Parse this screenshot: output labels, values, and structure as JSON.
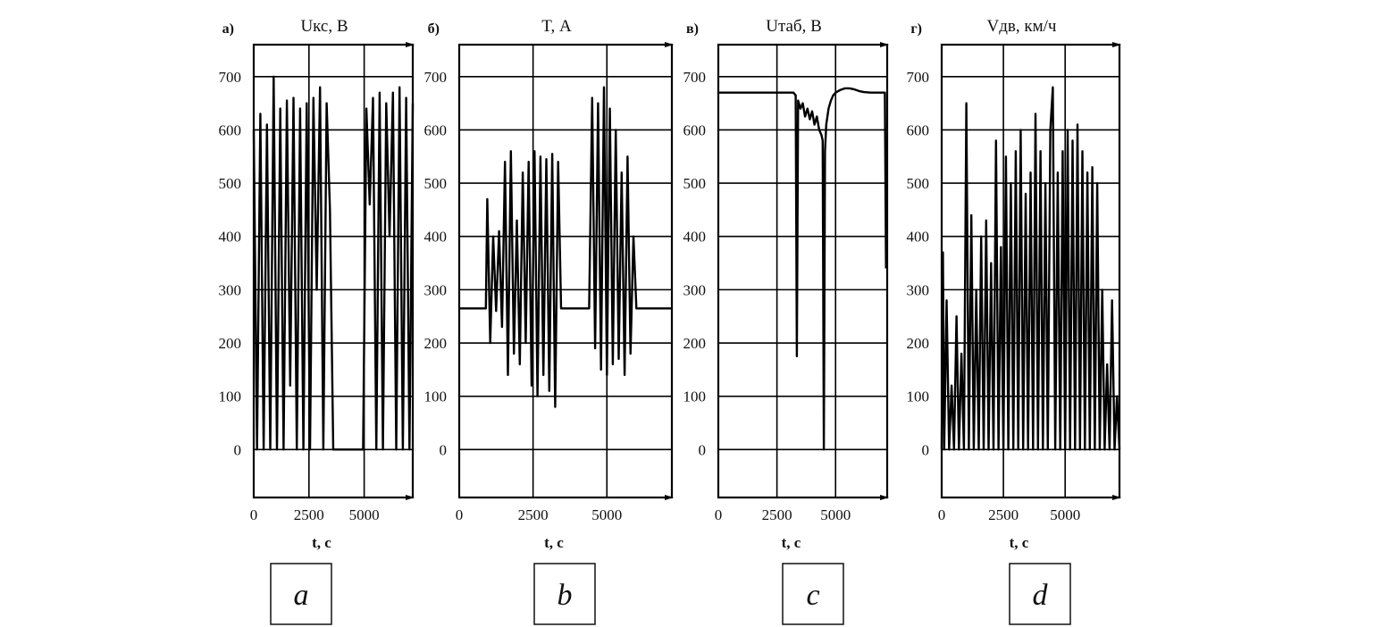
{
  "chart_data": [
    {
      "type": "line",
      "panel_label": "а)",
      "title": "Uкс, В",
      "xlabel": "t, с",
      "ylabel": "",
      "caption": "a",
      "xlim": [
        0,
        7200
      ],
      "ylim": [
        -90,
        760
      ],
      "xticks": [
        0,
        2500,
        5000
      ],
      "yticks": [
        0,
        100,
        200,
        300,
        400,
        500,
        600,
        700
      ],
      "grid": true,
      "series": [
        {
          "x": [
            0,
            150,
            300,
            450,
            600,
            750,
            900,
            1050,
            1200,
            1350,
            1500,
            1650,
            1800,
            1950,
            2100,
            2250,
            2400,
            2550,
            2700,
            2850,
            3000,
            3150,
            3300,
            3450,
            3600,
            3750,
            3900,
            4050,
            4200,
            4350,
            4500,
            4650,
            4800,
            4950,
            5100,
            5250,
            5400,
            5550,
            5700,
            5850,
            6000,
            6150,
            6300,
            6450,
            6600,
            6750,
            6900,
            7050,
            7200
          ],
          "y": [
            600,
            0,
            630,
            0,
            610,
            0,
            700,
            0,
            640,
            0,
            655,
            120,
            660,
            0,
            640,
            0,
            650,
            0,
            660,
            300,
            680,
            0,
            650,
            450,
            0,
            0,
            0,
            0,
            0,
            0,
            0,
            0,
            0,
            0,
            640,
            460,
            660,
            0,
            670,
            0,
            650,
            400,
            670,
            0,
            680,
            0,
            660,
            0,
            650
          ]
        }
      ]
    },
    {
      "type": "line",
      "panel_label": "б)",
      "title": "T, А",
      "xlabel": "t, с",
      "ylabel": "",
      "caption": "b",
      "xlim": [
        0,
        7200
      ],
      "ylim": [
        -90,
        760
      ],
      "xticks": [
        0,
        2500,
        5000
      ],
      "yticks": [
        0,
        100,
        200,
        300,
        400,
        500,
        600,
        700
      ],
      "grid": true,
      "series": [
        {
          "x": [
            0,
            900,
            950,
            1050,
            1150,
            1250,
            1350,
            1450,
            1550,
            1650,
            1750,
            1850,
            1950,
            2050,
            2150,
            2250,
            2350,
            2450,
            2550,
            2650,
            2750,
            2850,
            2950,
            3050,
            3150,
            3250,
            3350,
            3450,
            3600,
            3900,
            4200,
            4400,
            4500,
            4600,
            4700,
            4800,
            4900,
            5000,
            5100,
            5200,
            5300,
            5400,
            5500,
            5600,
            5700,
            5800,
            5900,
            6000,
            6300,
            7200
          ],
          "y": [
            265,
            265,
            470,
            200,
            400,
            260,
            410,
            230,
            540,
            140,
            560,
            180,
            430,
            160,
            520,
            200,
            540,
            120,
            560,
            100,
            550,
            140,
            545,
            110,
            555,
            80,
            540,
            265,
            265,
            265,
            265,
            265,
            660,
            190,
            650,
            150,
            680,
            140,
            640,
            160,
            600,
            170,
            520,
            140,
            550,
            180,
            400,
            265,
            265,
            265
          ]
        }
      ]
    },
    {
      "type": "line",
      "panel_label": "в)",
      "title": "Uтаб, В",
      "xlabel": "t, с",
      "ylabel": "",
      "caption": "c",
      "xlim": [
        0,
        7200
      ],
      "ylim": [
        -90,
        760
      ],
      "xticks": [
        0,
        2500,
        5000
      ],
      "yticks": [
        0,
        100,
        200,
        300,
        400,
        500,
        600,
        700
      ],
      "grid": true,
      "series": [
        {
          "x": [
            0,
            500,
            1000,
            1500,
            2000,
            2500,
            3000,
            3200,
            3300,
            3350,
            3400,
            3500,
            3600,
            3700,
            3800,
            3900,
            4000,
            4100,
            4200,
            4300,
            4400,
            4450,
            4500,
            4550,
            4600,
            4700,
            4800,
            4900,
            5000,
            5200,
            5400,
            5600,
            5800,
            6000,
            6200,
            6500,
            6800,
            7000,
            7100,
            7150
          ],
          "y": [
            670,
            670,
            670,
            670,
            670,
            670,
            670,
            670,
            665,
            175,
            655,
            640,
            650,
            625,
            640,
            620,
            635,
            610,
            625,
            600,
            590,
            580,
            0,
            560,
            610,
            640,
            655,
            665,
            670,
            675,
            678,
            678,
            676,
            673,
            671,
            670,
            670,
            670,
            670,
            340
          ]
        }
      ]
    },
    {
      "type": "line",
      "panel_label": "г)",
      "title": "Vдв, км/ч",
      "xlabel": "t, с",
      "ylabel": "",
      "caption": "d",
      "xlim": [
        0,
        7200
      ],
      "ylim": [
        -90,
        760
      ],
      "xticks": [
        0,
        2500,
        5000
      ],
      "yticks": [
        0,
        100,
        200,
        300,
        400,
        500,
        600,
        700
      ],
      "grid": true,
      "series": [
        {
          "x": [
            0,
            50,
            100,
            200,
            300,
            400,
            500,
            600,
            700,
            800,
            900,
            1000,
            1100,
            1200,
            1300,
            1400,
            1500,
            1600,
            1700,
            1800,
            1900,
            2000,
            2100,
            2200,
            2300,
            2400,
            2500,
            2600,
            2700,
            2800,
            2900,
            3000,
            3100,
            3200,
            3300,
            3400,
            3500,
            3600,
            3700,
            3800,
            3900,
            4000,
            4100,
            4200,
            4300,
            4400,
            4500,
            4600,
            4700,
            4800,
            4900,
            5000,
            5100,
            5200,
            5300,
            5400,
            5500,
            5600,
            5700,
            5800,
            5900,
            6000,
            6100,
            6200,
            6300,
            6400,
            6500,
            6600,
            6700,
            6800,
            6900,
            7000,
            7100,
            7200
          ],
          "y": [
            0,
            370,
            0,
            280,
            0,
            120,
            0,
            250,
            0,
            180,
            0,
            650,
            0,
            440,
            0,
            300,
            0,
            400,
            0,
            430,
            0,
            350,
            0,
            580,
            0,
            380,
            0,
            550,
            0,
            500,
            0,
            560,
            0,
            600,
            0,
            480,
            0,
            520,
            0,
            630,
            0,
            560,
            0,
            500,
            0,
            600,
            680,
            0,
            520,
            0,
            560,
            0,
            600,
            0,
            580,
            0,
            610,
            0,
            560,
            0,
            520,
            0,
            530,
            0,
            500,
            0,
            300,
            0,
            160,
            0,
            280,
            0,
            100,
            0
          ]
        }
      ]
    }
  ]
}
